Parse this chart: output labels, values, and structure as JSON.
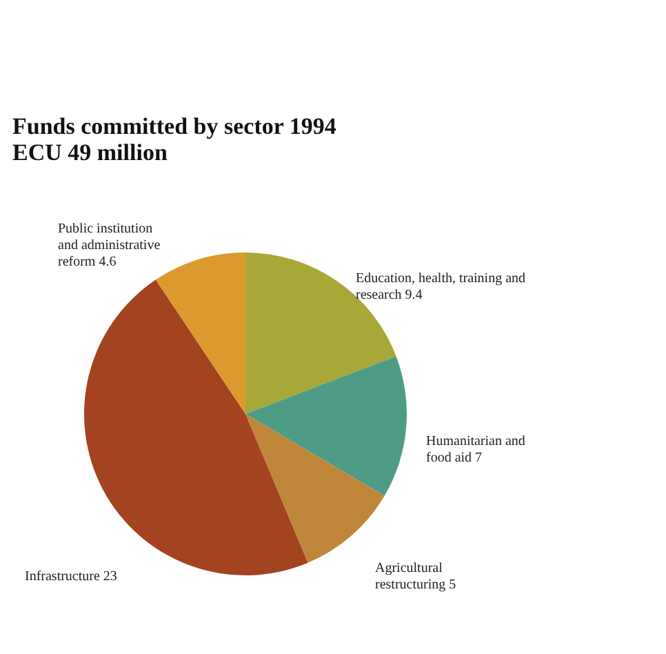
{
  "chart_data": {
    "type": "pie",
    "title": "Funds committed by sector 1994",
    "subtitle": "ECU 49 million",
    "categories": [
      "Education, health, training and research",
      "Humanitarian and food aid",
      "Agricultural restructuring",
      "Infrastructure",
      "Public institution and administrative reform"
    ],
    "values": [
      9.4,
      7,
      5,
      23,
      4.6
    ],
    "colors": [
      "#a8a838",
      "#4f9c86",
      "#c0873a",
      "#a3431f",
      "#dc9a2e"
    ],
    "data_labels": true
  }
}
